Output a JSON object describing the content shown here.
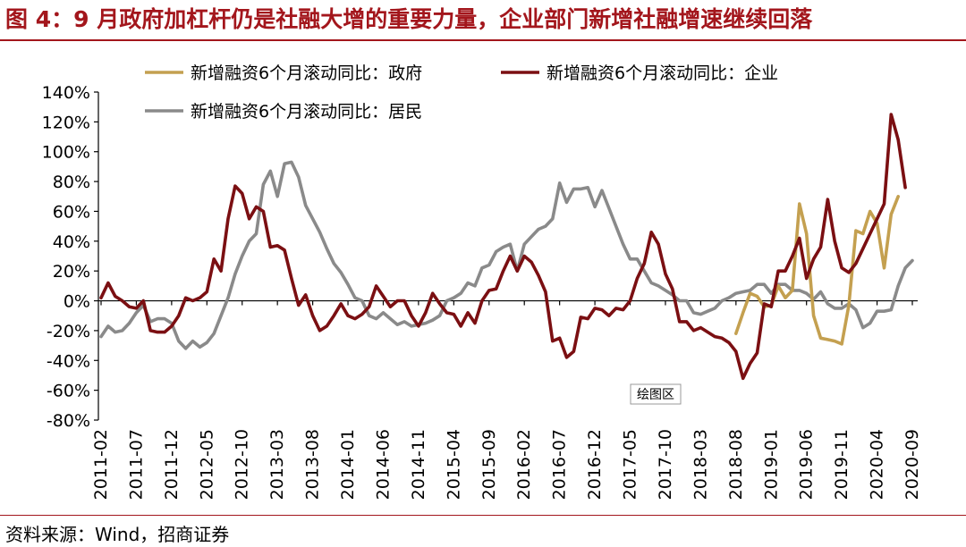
{
  "title": "图 4：9 月政府加杠杆仍是社融大增的重要力量，企业部门新增社融增速继续回落",
  "source": "资料来源：Wind，招商证券",
  "colors": {
    "accent": "#a3161c",
    "gov": "#c4a050",
    "corp": "#7b0f12",
    "res": "#8a8a8a"
  },
  "chart_data": {
    "type": "line",
    "plot_label": "绘图区",
    "ylim": [
      -80,
      140
    ],
    "yticks": [
      -80,
      -60,
      -40,
      -20,
      0,
      20,
      40,
      60,
      80,
      100,
      120,
      140
    ],
    "ytick_labels": [
      "-80%",
      "-60%",
      "-40%",
      "-20%",
      "0%",
      "20%",
      "40%",
      "60%",
      "80%",
      "100%",
      "120%",
      "140%"
    ],
    "x_range": [
      "2011-02",
      "2020-09"
    ],
    "xtick_labels": [
      "2011-02",
      "2011-07",
      "2011-12",
      "2012-05",
      "2012-10",
      "2013-03",
      "2013-08",
      "2014-01",
      "2014-06",
      "2014-11",
      "2015-04",
      "2015-09",
      "2016-02",
      "2016-07",
      "2016-12",
      "2017-05",
      "2017-10",
      "2018-03",
      "2018-08",
      "2019-01",
      "2019-06",
      "2019-11",
      "2020-04",
      "2020-09"
    ],
    "series": [
      {
        "name": "新增融资6个月滚动同比：政府",
        "start": "2018-08",
        "values": [
          -22,
          -8,
          5,
          3,
          -4,
          -3,
          10,
          2,
          7,
          65,
          45,
          -10,
          -25,
          -26,
          -27,
          -29,
          -3,
          47,
          45,
          60,
          52,
          22,
          58,
          70
        ]
      },
      {
        "name": "新增融资6个月滚动同比：企业",
        "start": "2011-02",
        "values": [
          2,
          12,
          3,
          0,
          -4,
          -5,
          0,
          -20,
          -21,
          -21,
          -17,
          -10,
          2,
          0,
          2,
          6,
          28,
          20,
          55,
          77,
          72,
          55,
          63,
          60,
          36,
          37,
          34,
          15,
          -3,
          4,
          -10,
          -20,
          -17,
          -10,
          -2,
          -10,
          -12,
          -9,
          -4,
          10,
          3,
          -4,
          0,
          0,
          -10,
          -17,
          -8,
          5,
          -2,
          -8,
          -9,
          -17,
          -8,
          -15,
          0,
          7,
          8,
          20,
          30,
          20,
          30,
          26,
          17,
          6,
          -27,
          -25,
          -38,
          -34,
          -11,
          -12,
          -5,
          -6,
          -10,
          -5,
          -6,
          0,
          15,
          25,
          46,
          38,
          18,
          8,
          -14,
          -14,
          -20,
          -18,
          -21,
          -24,
          -25,
          -28,
          -34,
          -52,
          -42,
          -35,
          -2,
          -4,
          20,
          20,
          30,
          42,
          15,
          28,
          36,
          68,
          40,
          22,
          19,
          25,
          35,
          45,
          55,
          65,
          125,
          108,
          76
        ]
      },
      {
        "name": "新增融资6个月滚动同比：居民",
        "start": "2011-02",
        "values": [
          -24,
          -17,
          -21,
          -20,
          -15,
          -8,
          -3,
          -14,
          -12,
          -12,
          -15,
          -27,
          -32,
          -27,
          -31,
          -28,
          -22,
          -10,
          2,
          18,
          30,
          40,
          45,
          78,
          87,
          70,
          92,
          93,
          83,
          64,
          55,
          46,
          35,
          25,
          19,
          11,
          2,
          0,
          -10,
          -12,
          -8,
          -12,
          -16,
          -14,
          -17,
          -16,
          -15,
          -13,
          -10,
          0,
          2,
          5,
          12,
          10,
          22,
          24,
          33,
          36,
          38,
          20,
          38,
          43,
          48,
          50,
          55,
          79,
          66,
          75,
          75,
          76,
          63,
          74,
          62,
          50,
          38,
          28,
          28,
          20,
          12,
          10,
          7,
          4,
          0,
          0,
          -8,
          -9,
          -7,
          -5,
          0,
          2,
          5,
          6,
          7,
          11,
          11,
          5,
          11,
          11,
          7,
          7,
          5,
          1,
          6,
          -2,
          -5,
          -5,
          -2,
          -6,
          -18,
          -15,
          -7,
          -7,
          -6,
          10,
          22,
          27
        ]
      }
    ]
  }
}
